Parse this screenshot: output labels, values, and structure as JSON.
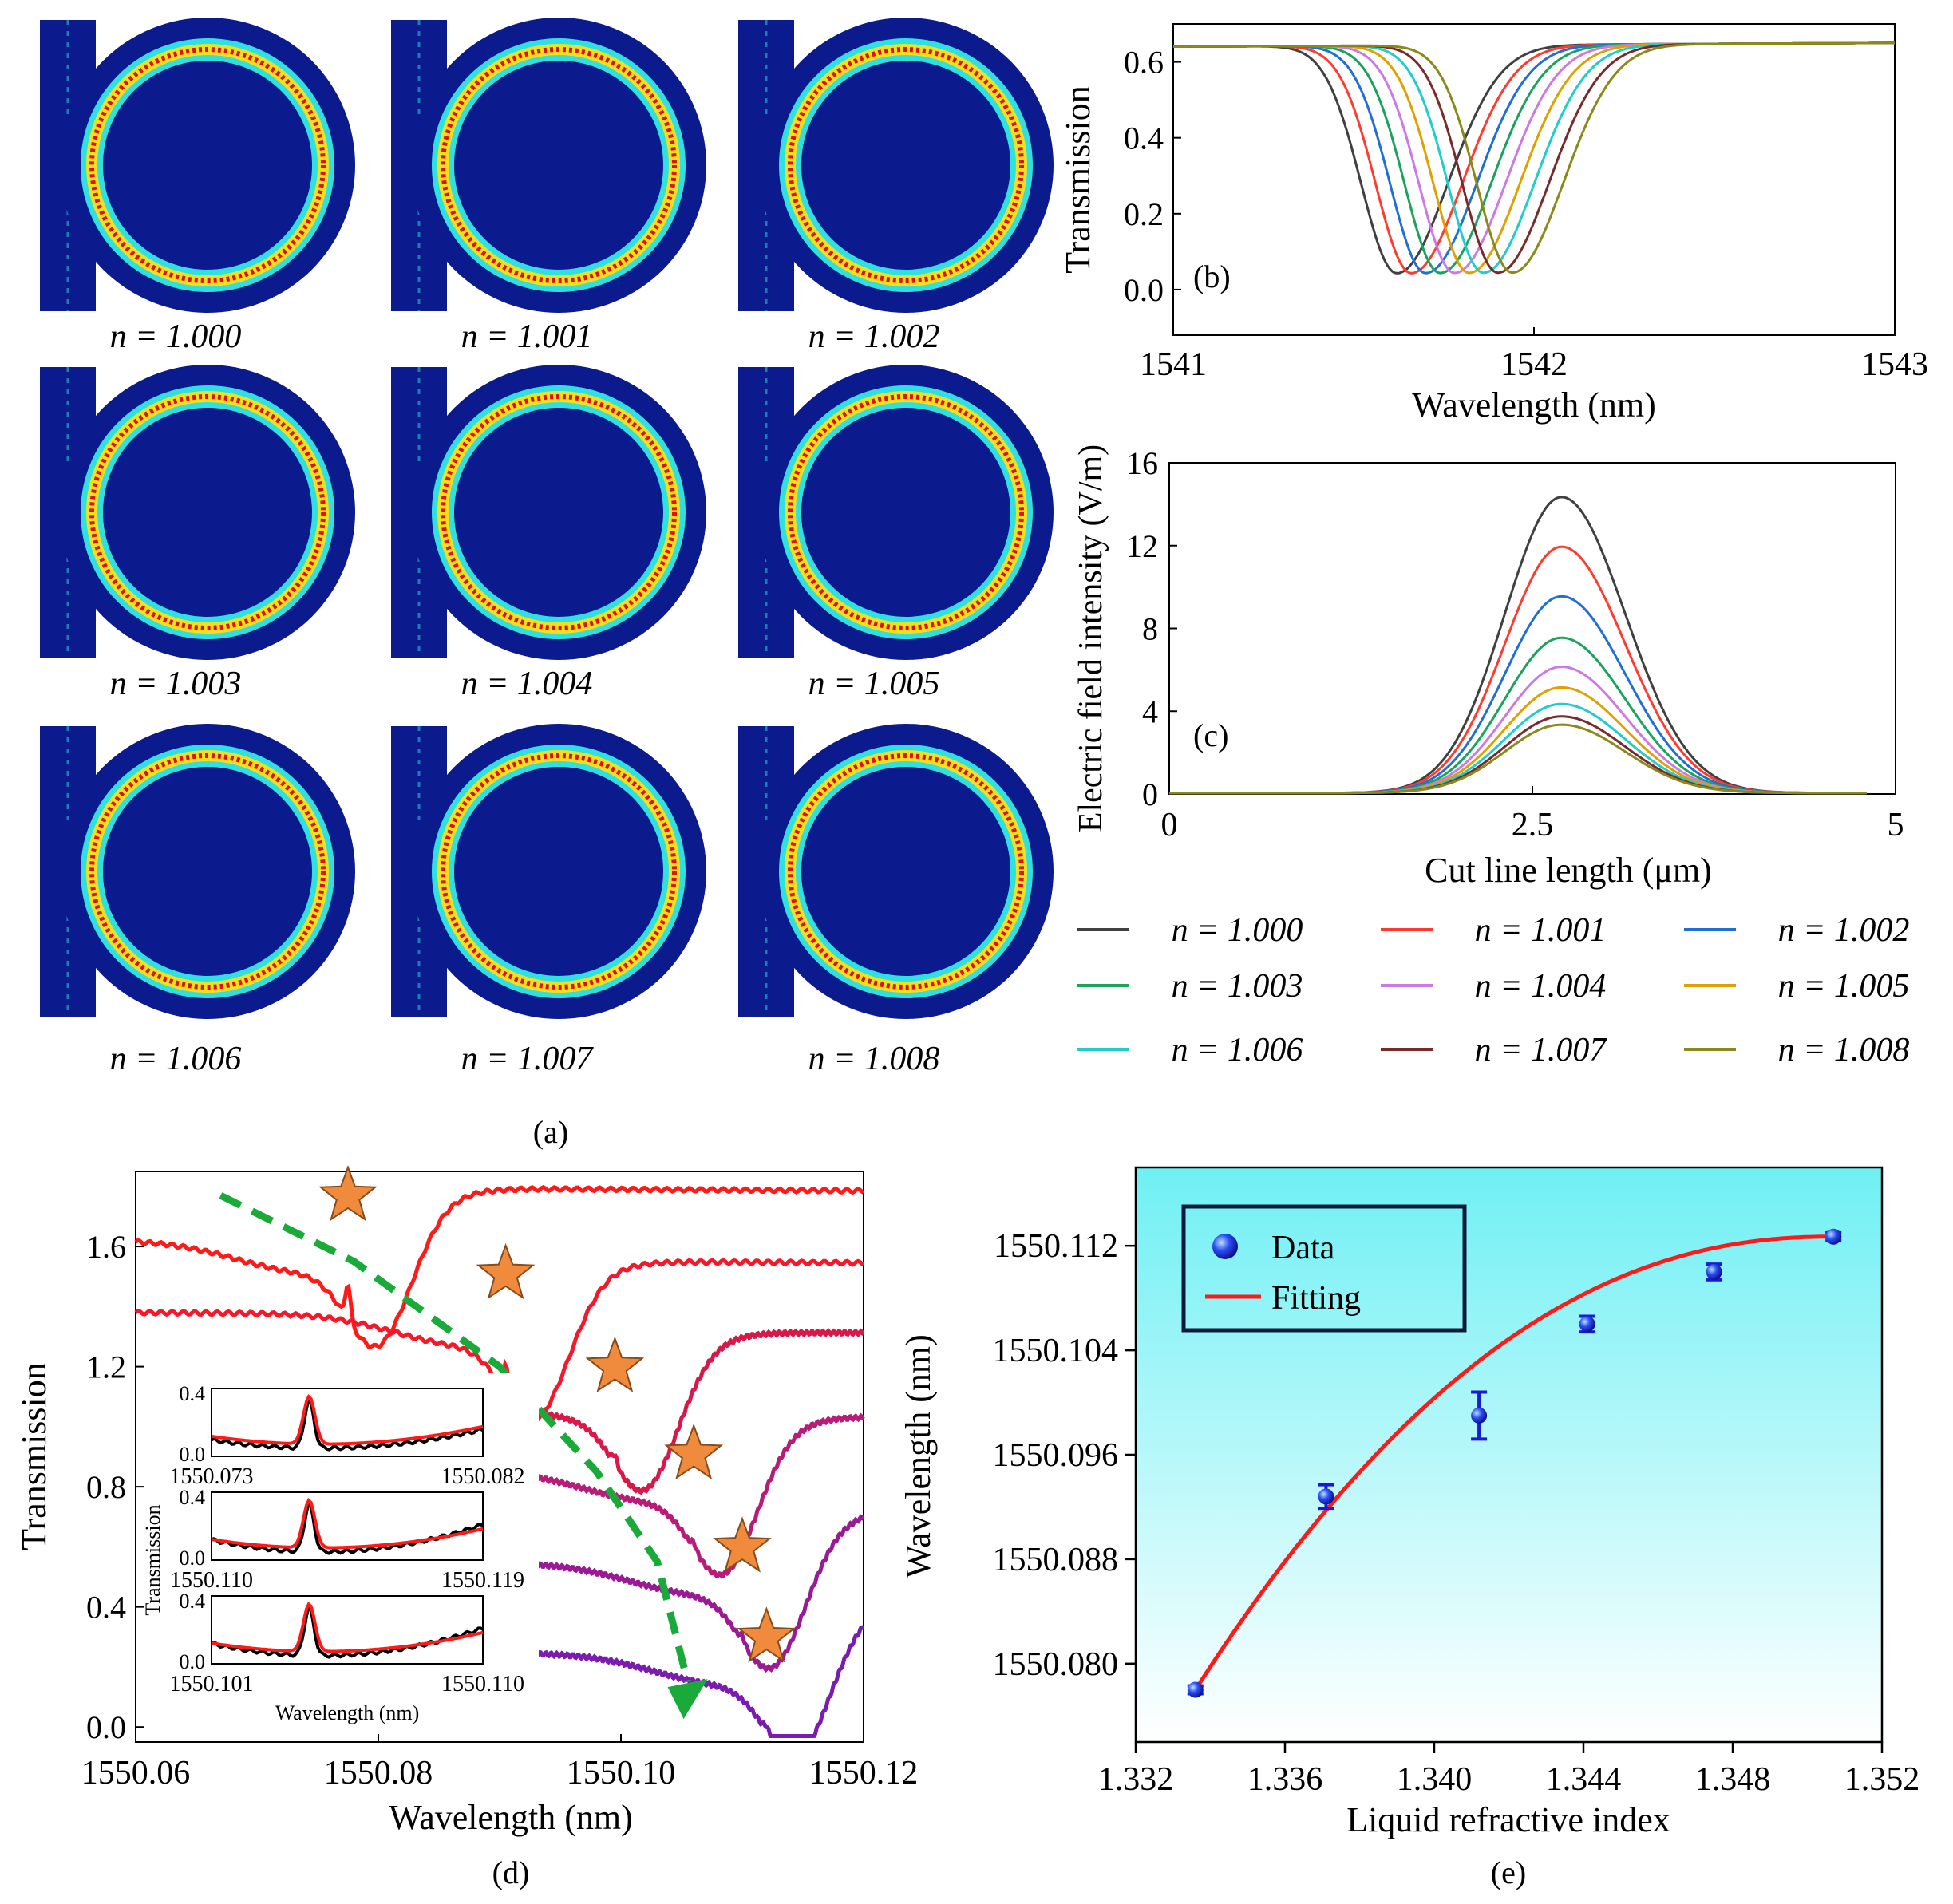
{
  "panel_a": {
    "label": "(a)",
    "fields": [
      "n = 1.000",
      "n = 1.001",
      "n = 1.002",
      "n = 1.003",
      "n = 1.004",
      "n = 1.005",
      "n = 1.006",
      "n = 1.007",
      "n = 1.008"
    ],
    "colors": {
      "background": "#0b1a8c",
      "ring_hot": "#e01010",
      "ring_mid": "#f0e020",
      "ring_cool": "#30e0e0"
    }
  },
  "legend": {
    "entries": [
      {
        "label": "n = 1.000",
        "color": "#404040"
      },
      {
        "label": "n = 1.001",
        "color": "#ff3b30"
      },
      {
        "label": "n = 1.002",
        "color": "#1f6fd6"
      },
      {
        "label": "n = 1.003",
        "color": "#1aa35c"
      },
      {
        "label": "n = 1.004",
        "color": "#cc79e6"
      },
      {
        "label": "n = 1.005",
        "color": "#e0a100"
      },
      {
        "label": "n = 1.006",
        "color": "#20cccc"
      },
      {
        "label": "n = 1.007",
        "color": "#7a2a2a"
      },
      {
        "label": "n = 1.008",
        "color": "#8a8a1a"
      }
    ]
  },
  "chart_data": [
    {
      "id": "b",
      "type": "line",
      "panel_label": "(b)",
      "xlabel": "Wavelength (nm)",
      "ylabel": "Transmission",
      "xlim": [
        1541,
        1543
      ],
      "ylim": [
        -0.12,
        0.7
      ],
      "xticks": [
        "1541",
        "1542",
        "1543"
      ],
      "yticks": [
        "0.0",
        "0.2",
        "0.4",
        "0.6"
      ],
      "baseline": 0.64,
      "dip_min": 0.04,
      "dip_centers": [
        1541.62,
        1541.66,
        1541.7,
        1541.74,
        1541.78,
        1541.82,
        1541.86,
        1541.9,
        1541.94
      ],
      "series_names": [
        "n = 1.000",
        "n = 1.001",
        "n = 1.002",
        "n = 1.003",
        "n = 1.004",
        "n = 1.005",
        "n = 1.006",
        "n = 1.007",
        "n = 1.008"
      ]
    },
    {
      "id": "c",
      "type": "line",
      "panel_label": "(c)",
      "xlabel": "Cut line length (μm)",
      "ylabel": "Electric field intensity (V/m)",
      "xlim": [
        0,
        5
      ],
      "ylim": [
        0,
        16
      ],
      "xticks": [
        "0",
        "2.5",
        "5"
      ],
      "yticks": [
        "0",
        "4",
        "8",
        "12",
        "16"
      ],
      "x_end": 4.8,
      "peaks": [
        14.3,
        11.9,
        9.5,
        7.5,
        6.1,
        5.1,
        4.3,
        3.7,
        3.3
      ],
      "series_names": [
        "n = 1.000",
        "n = 1.001",
        "n = 1.002",
        "n = 1.003",
        "n = 1.004",
        "n = 1.005",
        "n = 1.006",
        "n = 1.007",
        "n = 1.008"
      ]
    },
    {
      "id": "d",
      "type": "line",
      "panel_label": "(d)",
      "xlabel": "Wavelength (nm)",
      "ylabel": "Transmission",
      "xlim": [
        1550.06,
        1550.12
      ],
      "ylim": [
        -0.05,
        1.85
      ],
      "xticks": [
        "1550.06",
        "1550.08",
        "1550.10",
        "1550.12"
      ],
      "yticks": [
        "0.0",
        "0.4",
        "0.8",
        "1.2",
        "1.6"
      ],
      "series": [
        {
          "color": "#ff1a1a",
          "peak_x": 1550.0775,
          "peak_y": 1.72
        },
        {
          "color": "#f5182a",
          "peak_x": 1550.0905,
          "peak_y": 1.46
        },
        {
          "color": "#d81848",
          "peak_x": 1550.0995,
          "peak_y": 1.15
        },
        {
          "color": "#b81c78",
          "peak_x": 1550.106,
          "peak_y": 0.86
        },
        {
          "color": "#9a1a96",
          "peak_x": 1550.11,
          "peak_y": 0.55
        },
        {
          "color": "#7a1cb0",
          "peak_x": 1550.112,
          "peak_y": 0.25
        }
      ],
      "inset": {
        "ylabel": "Transmission",
        "xlabel": "Wavelength (nm)",
        "panels": [
          {
            "x0": "1550.073",
            "x1": "1550.082"
          },
          {
            "x0": "1550.110",
            "x1": "1550.119"
          },
          {
            "x0": "1550.101",
            "x1": "1550.110"
          }
        ],
        "yticks": [
          "0.0",
          "0.4"
        ]
      }
    },
    {
      "id": "e",
      "type": "scatter",
      "panel_label": "(e)",
      "xlabel": "Liquid refractive index",
      "ylabel": "Wavelength (nm)",
      "xlim": [
        1.332,
        1.352
      ],
      "ylim": [
        1550.074,
        1550.118
      ],
      "xticks": [
        "1.332",
        "1.336",
        "1.340",
        "1.344",
        "1.348",
        "1.352"
      ],
      "yticks": [
        "1550.080",
        "1550.088",
        "1550.096",
        "1550.104",
        "1550.112"
      ],
      "x": [
        1.3336,
        1.3371,
        1.3412,
        1.3441,
        1.3475,
        1.3507
      ],
      "y": [
        1550.078,
        1550.0928,
        1550.099,
        1550.106,
        1550.11,
        1550.1127
      ],
      "err": [
        0.0003,
        0.0009,
        0.0018,
        0.0006,
        0.0006,
        0.0003
      ],
      "legend": [
        "Data",
        "Fitting"
      ],
      "colors": {
        "data": "#1a1ad6",
        "fit": "#ff1a1a",
        "bg_top": "#6ff0f4"
      }
    }
  ]
}
